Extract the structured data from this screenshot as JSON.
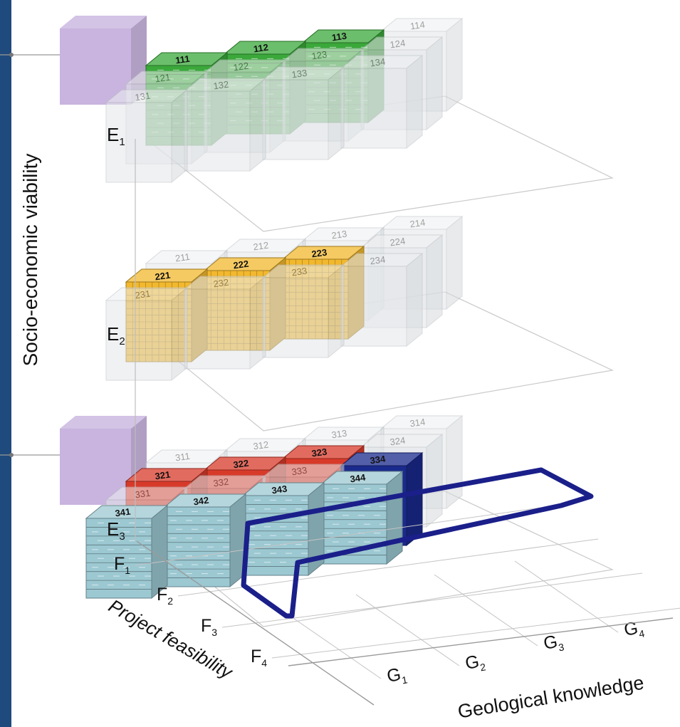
{
  "axes": {
    "vertical": {
      "label": "Socio-economic viability",
      "ticks": [
        "E",
        "E",
        "E"
      ],
      "subs": [
        "1",
        "2",
        "3"
      ]
    },
    "depth": {
      "label": "Project feasibility",
      "ticks": [
        "F",
        "F",
        "F",
        "F"
      ],
      "subs": [
        "1",
        "2",
        "3",
        "4"
      ]
    },
    "horizontal": {
      "label": "Geological knowledge",
      "ticks": [
        "G",
        "G",
        "G",
        "G"
      ],
      "subs": [
        "1",
        "2",
        "3",
        "4"
      ]
    }
  },
  "levels": [
    {
      "id": "E1",
      "cells": [
        {
          "code": "111",
          "style": "green"
        },
        {
          "code": "112",
          "style": "green"
        },
        {
          "code": "113",
          "style": "green"
        },
        {
          "code": "114",
          "style": "ghost"
        },
        {
          "code": "121",
          "style": "ghost"
        },
        {
          "code": "122",
          "style": "ghost"
        },
        {
          "code": "123",
          "style": "ghost"
        },
        {
          "code": "124",
          "style": "ghost"
        },
        {
          "code": "131",
          "style": "ghost"
        },
        {
          "code": "132",
          "style": "ghost"
        },
        {
          "code": "133",
          "style": "ghost"
        },
        {
          "code": "134",
          "style": "ghost"
        }
      ]
    },
    {
      "id": "E2",
      "cells": [
        {
          "code": "211",
          "style": "ghost"
        },
        {
          "code": "212",
          "style": "ghost"
        },
        {
          "code": "213",
          "style": "ghost"
        },
        {
          "code": "214",
          "style": "ghost"
        },
        {
          "code": "221",
          "style": "yellow"
        },
        {
          "code": "222",
          "style": "yellow"
        },
        {
          "code": "223",
          "style": "yellow"
        },
        {
          "code": "224",
          "style": "ghost"
        },
        {
          "code": "231",
          "style": "ghost"
        },
        {
          "code": "232",
          "style": "ghost"
        },
        {
          "code": "233",
          "style": "ghost"
        },
        {
          "code": "234",
          "style": "ghost"
        }
      ]
    },
    {
      "id": "E3",
      "cells": [
        {
          "code": "311",
          "style": "ghost"
        },
        {
          "code": "312",
          "style": "ghost"
        },
        {
          "code": "313",
          "style": "ghost"
        },
        {
          "code": "314",
          "style": "ghost"
        },
        {
          "code": "321",
          "style": "red"
        },
        {
          "code": "322",
          "style": "red"
        },
        {
          "code": "323",
          "style": "red"
        },
        {
          "code": "324",
          "style": "ghost"
        },
        {
          "code": "331",
          "style": "ghost"
        },
        {
          "code": "332",
          "style": "ghost"
        },
        {
          "code": "333",
          "style": "ghost"
        },
        {
          "code": "334",
          "style": "navy"
        },
        {
          "code": "341",
          "style": "teal"
        },
        {
          "code": "342",
          "style": "teal"
        },
        {
          "code": "343",
          "style": "teal"
        },
        {
          "code": "344",
          "style": "teal"
        }
      ]
    }
  ],
  "colors": {
    "sidebar": "#1e4a7d",
    "green": "#3aa83a",
    "yellow": "#f2b82e",
    "red": "#d83a2a",
    "navy": "#1a2a8c",
    "teal": "#9cc8d2",
    "ghost": "#d9dde0",
    "highlight": "#1a1f8a",
    "purple": "#c8b4de"
  }
}
